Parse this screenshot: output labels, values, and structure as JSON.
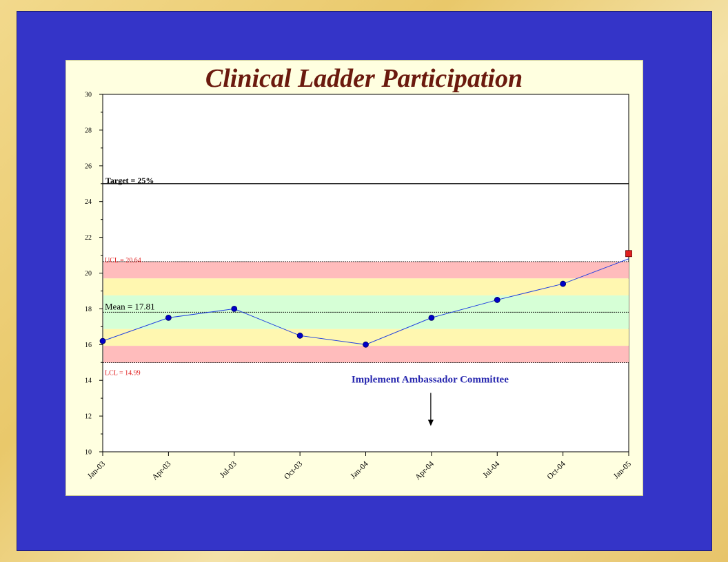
{
  "chart_data": {
    "type": "line",
    "title": "Clinical Ladder Participation",
    "xlabel": "",
    "ylabel": "",
    "categories": [
      "Jan-03",
      "Apr-03",
      "Jul-03",
      "Oct-03",
      "Jan-04",
      "Apr-04",
      "Jul-04",
      "Oct-04",
      "Jan-05"
    ],
    "values": [
      16.2,
      17.5,
      18.0,
      16.5,
      16.0,
      17.5,
      18.5,
      19.4,
      20.8
    ],
    "last_point_marker": "square",
    "ylim": [
      10,
      30
    ],
    "yticks": [
      10,
      12,
      14,
      16,
      18,
      20,
      22,
      24,
      26,
      28,
      30
    ],
    "grid": false,
    "reference_lines": {
      "target": {
        "value": 25,
        "label": "Target = 25%"
      },
      "ucl": {
        "value": 20.64,
        "label": "UCL = 20.64"
      },
      "mean": {
        "value": 17.81,
        "label": "Mean = 17.81"
      },
      "lcl": {
        "value": 14.99,
        "label": "LCL = 14.99"
      }
    },
    "zones": [
      {
        "from": 19.7,
        "to": 20.64,
        "color": "#ffbcbc"
      },
      {
        "from": 18.75,
        "to": 19.7,
        "color": "#fff7b0"
      },
      {
        "from": 16.87,
        "to": 18.75,
        "color": "#d6ffd6"
      },
      {
        "from": 15.93,
        "to": 16.87,
        "color": "#fff7b0"
      },
      {
        "from": 14.99,
        "to": 15.93,
        "color": "#ffbcbc"
      }
    ],
    "annotation": {
      "text": "Implement Ambassador Committee",
      "x": "Apr-04"
    },
    "colors": {
      "line": "#1f3fe0",
      "point": "#0000c8",
      "last_point": "#e02020"
    }
  }
}
